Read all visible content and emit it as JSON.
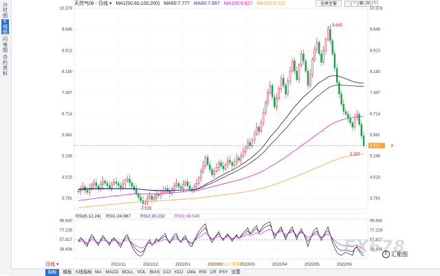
{
  "sidebar": {
    "tabs": [
      {
        "label": "分时图",
        "active": false
      },
      {
        "label": "K线图",
        "active": true
      },
      {
        "label": "闪电图",
        "active": false
      },
      {
        "label": "合约资料",
        "active": false
      }
    ]
  },
  "header": {
    "symbol": "天然气08 - 日线 ▾",
    "ma_title": "MA1(50,60,100,200)",
    "ma50": "MA50:7.777",
    "ma60": "MA60:7.667",
    "ma100": "MA100:6.627",
    "ma200": "MA200:5.316"
  },
  "toolbar": {
    "screen_button": "全屏主窗",
    "icons": [
      "minus-icon",
      "plus-icon",
      "grid-icon",
      "chart-icon",
      "refresh-icon"
    ]
  },
  "colors": {
    "up": "#c8102e",
    "down": "#1e9c4a",
    "ma50": "#222222",
    "ma60": "#2d2d7a",
    "ma100": "#e020c8",
    "ma200": "#f4a340",
    "rsi1": "#222222",
    "rsi2": "#2d2d7a",
    "rsi3": "#e020c8",
    "accent": "#2f6fc4"
  },
  "chart_data": {
    "type": "candlestick",
    "y_ticks": [
      "10.379",
      "9.646",
      "8.913",
      "8.180",
      "7.447",
      "6.714",
      "5.981",
      "5.248",
      "4.515",
      "3.781"
    ],
    "ylim": [
      3.4,
      10.379
    ],
    "x_ticks": [
      "2021/11",
      "2021/12",
      "2022/01",
      "2022/02",
      "2022/03",
      "2022/04",
      "2022/05",
      "2022/06"
    ],
    "crosshair_date": "2022/02/17 星期四",
    "annotations": {
      "high": "9.645",
      "low": "3.526",
      "recent_low": "5.357"
    },
    "last_price": "5.611",
    "candles_close": [
      4.02,
      4.1,
      4.18,
      4.05,
      3.98,
      4.12,
      4.25,
      4.32,
      4.2,
      4.1,
      4.26,
      4.38,
      4.3,
      4.22,
      4.14,
      4.28,
      4.35,
      4.3,
      4.22,
      4.15,
      4.28,
      4.4,
      4.45,
      4.32,
      4.2,
      4.08,
      3.94,
      3.82,
      3.7,
      3.6,
      3.66,
      3.78,
      3.86,
      3.74,
      3.8,
      3.92,
      3.88,
      3.96,
      4.05,
      4.12,
      4.02,
      3.95,
      4.1,
      4.22,
      4.3,
      4.18,
      4.12,
      4.26,
      4.35,
      4.22,
      4.1,
      4.05,
      4.18,
      4.3,
      4.48,
      4.7,
      4.92,
      5.2,
      4.95,
      4.78,
      4.6,
      4.72,
      4.85,
      5.02,
      4.9,
      4.8,
      4.95,
      5.1,
      5.02,
      4.92,
      5.05,
      5.18,
      5.1,
      5.25,
      5.4,
      5.55,
      5.72,
      5.6,
      5.8,
      6.02,
      6.25,
      6.1,
      6.4,
      6.75,
      7.1,
      7.45,
      7.7,
      7.3,
      6.95,
      7.25,
      7.6,
      7.95,
      7.7,
      7.4,
      7.85,
      8.2,
      8.55,
      8.2,
      7.9,
      8.4,
      8.8,
      8.55,
      8.2,
      7.7,
      8.1,
      8.6,
      8.95,
      9.2,
      8.8,
      8.5,
      8.9,
      9.3,
      9.65,
      9.25,
      8.8,
      8.3,
      7.8,
      7.4,
      7.05,
      6.8,
      6.7,
      6.55,
      6.4,
      6.25,
      6.6,
      6.7,
      6.35,
      5.95,
      5.61
    ],
    "ma50": [
      4.1,
      4.1,
      4.11,
      4.11,
      4.11,
      4.11,
      4.12,
      4.12,
      4.12,
      4.12,
      4.12,
      4.12,
      4.12,
      4.12,
      4.12,
      4.12,
      4.12,
      4.12,
      4.12,
      4.12,
      4.12,
      4.12,
      4.12,
      4.12,
      4.12,
      4.12,
      4.11,
      4.1,
      4.09,
      4.08,
      4.07,
      4.07,
      4.06,
      4.05,
      4.05,
      4.05,
      4.04,
      4.04,
      4.04,
      4.04,
      4.04,
      4.04,
      4.05,
      4.05,
      4.06,
      4.06,
      4.06,
      4.07,
      4.07,
      4.07,
      4.07,
      4.07,
      4.08,
      4.1,
      4.13,
      4.17,
      4.21,
      4.26,
      4.3,
      4.34,
      4.38,
      4.42,
      4.47,
      4.52,
      4.56,
      4.6,
      4.64,
      4.68,
      4.72,
      4.76,
      4.8,
      4.85,
      4.89,
      4.94,
      4.99,
      5.04,
      5.1,
      5.15,
      5.21,
      5.28,
      5.35,
      5.42,
      5.5,
      5.59,
      5.69,
      5.79,
      5.9,
      5.99,
      6.07,
      6.16,
      6.26,
      6.37,
      6.46,
      6.55,
      6.65,
      6.76,
      6.87,
      6.96,
      7.04,
      7.13,
      7.22,
      7.3,
      7.37,
      7.43,
      7.5,
      7.57,
      7.65,
      7.73,
      7.79,
      7.84,
      7.89,
      7.94,
      7.99,
      8.02,
      8.04,
      8.04,
      8.03,
      8.01,
      7.99,
      7.96,
      7.93,
      7.9,
      7.87,
      7.84,
      7.82,
      7.8,
      7.79,
      7.78,
      7.777
    ],
    "ma60": [
      4.08,
      4.08,
      4.09,
      4.09,
      4.09,
      4.1,
      4.1,
      4.1,
      4.1,
      4.1,
      4.1,
      4.1,
      4.11,
      4.11,
      4.11,
      4.11,
      4.11,
      4.11,
      4.11,
      4.11,
      4.11,
      4.11,
      4.11,
      4.11,
      4.11,
      4.11,
      4.1,
      4.1,
      4.09,
      4.08,
      4.08,
      4.07,
      4.07,
      4.06,
      4.06,
      4.06,
      4.05,
      4.05,
      4.05,
      4.05,
      4.05,
      4.05,
      4.05,
      4.06,
      4.06,
      4.06,
      4.06,
      4.07,
      4.07,
      4.07,
      4.07,
      4.07,
      4.08,
      4.09,
      4.11,
      4.14,
      4.17,
      4.21,
      4.25,
      4.28,
      4.31,
      4.35,
      4.39,
      4.43,
      4.47,
      4.5,
      4.54,
      4.58,
      4.62,
      4.65,
      4.69,
      4.73,
      4.77,
      4.81,
      4.86,
      4.9,
      4.95,
      5.0,
      5.05,
      5.11,
      5.17,
      5.23,
      5.3,
      5.37,
      5.45,
      5.54,
      5.63,
      5.71,
      5.78,
      5.86,
      5.95,
      6.04,
      6.12,
      6.2,
      6.29,
      6.38,
      6.48,
      6.56,
      6.64,
      6.72,
      6.81,
      6.89,
      6.96,
      7.02,
      7.09,
      7.16,
      7.24,
      7.31,
      7.37,
      7.43,
      7.49,
      7.55,
      7.61,
      7.65,
      7.68,
      7.7,
      7.71,
      7.71,
      7.71,
      7.7,
      7.7,
      7.69,
      7.69,
      7.68,
      7.68,
      7.67,
      7.67,
      7.67,
      7.667
    ],
    "ma100": [
      3.7,
      3.71,
      3.72,
      3.73,
      3.74,
      3.75,
      3.76,
      3.77,
      3.78,
      3.79,
      3.8,
      3.81,
      3.82,
      3.83,
      3.84,
      3.85,
      3.86,
      3.87,
      3.87,
      3.88,
      3.89,
      3.9,
      3.91,
      3.92,
      3.92,
      3.93,
      3.93,
      3.93,
      3.93,
      3.93,
      3.93,
      3.93,
      3.93,
      3.93,
      3.94,
      3.94,
      3.94,
      3.95,
      3.95,
      3.96,
      3.96,
      3.97,
      3.97,
      3.98,
      3.99,
      3.99,
      4.0,
      4.01,
      4.02,
      4.02,
      4.03,
      4.03,
      4.04,
      4.05,
      4.06,
      4.08,
      4.1,
      4.12,
      4.14,
      4.16,
      4.18,
      4.2,
      4.22,
      4.24,
      4.26,
      4.28,
      4.3,
      4.32,
      4.34,
      4.36,
      4.38,
      4.4,
      4.42,
      4.44,
      4.46,
      4.49,
      4.51,
      4.54,
      4.57,
      4.6,
      4.63,
      4.66,
      4.7,
      4.74,
      4.78,
      4.83,
      4.88,
      4.92,
      4.96,
      5.01,
      5.06,
      5.11,
      5.16,
      5.21,
      5.26,
      5.32,
      5.38,
      5.43,
      5.48,
      5.54,
      5.6,
      5.66,
      5.71,
      5.76,
      5.82,
      5.88,
      5.94,
      6.0,
      6.05,
      6.1,
      6.16,
      6.22,
      6.28,
      6.33,
      6.37,
      6.41,
      6.44,
      6.47,
      6.5,
      6.52,
      6.54,
      6.56,
      6.57,
      6.58,
      6.6,
      6.61,
      6.62,
      6.62,
      6.627
    ],
    "ma200": [
      3.45,
      3.46,
      3.47,
      3.48,
      3.48,
      3.49,
      3.5,
      3.51,
      3.51,
      3.52,
      3.53,
      3.54,
      3.54,
      3.55,
      3.56,
      3.57,
      3.57,
      3.58,
      3.59,
      3.6,
      3.6,
      3.61,
      3.62,
      3.63,
      3.63,
      3.64,
      3.64,
      3.65,
      3.65,
      3.66,
      3.66,
      3.67,
      3.67,
      3.68,
      3.68,
      3.69,
      3.69,
      3.7,
      3.7,
      3.71,
      3.71,
      3.72,
      3.72,
      3.73,
      3.73,
      3.74,
      3.74,
      3.75,
      3.75,
      3.76,
      3.76,
      3.77,
      3.77,
      3.78,
      3.79,
      3.8,
      3.81,
      3.82,
      3.83,
      3.84,
      3.85,
      3.86,
      3.87,
      3.88,
      3.89,
      3.9,
      3.91,
      3.92,
      3.93,
      3.94,
      3.95,
      3.96,
      3.97,
      3.98,
      3.99,
      4.0,
      4.02,
      4.03,
      4.05,
      4.06,
      4.08,
      4.1,
      4.12,
      4.14,
      4.16,
      4.18,
      4.21,
      4.23,
      4.26,
      4.28,
      4.31,
      4.34,
      4.37,
      4.4,
      4.43,
      4.46,
      4.49,
      4.52,
      4.55,
      4.58,
      4.62,
      4.65,
      4.68,
      4.71,
      4.74,
      4.78,
      4.81,
      4.84,
      4.88,
      4.91,
      4.94,
      4.97,
      5.01,
      5.04,
      5.07,
      5.1,
      5.13,
      5.15,
      5.18,
      5.2,
      5.22,
      5.24,
      5.25,
      5.27,
      5.28,
      5.29,
      5.3,
      5.31,
      5.316
    ]
  },
  "rsi": {
    "title": "RSI(6,12,24)",
    "rsi1": "RSI1:24.987",
    "rsi2": "RSI2:30.232",
    "rsi3": "RSI3:38.548",
    "y_ticks": [
      "96.640",
      "77.229",
      "57.817",
      "38.406"
    ],
    "ylim": [
      19,
      100
    ],
    "rsi1_values": [
      55,
      62,
      58,
      48,
      44,
      60,
      68,
      62,
      52,
      46,
      58,
      66,
      60,
      52,
      46,
      58,
      62,
      56,
      48,
      42,
      55,
      64,
      68,
      55,
      44,
      36,
      30,
      26,
      24,
      28,
      40,
      52,
      58,
      46,
      52,
      60,
      56,
      62,
      66,
      70,
      58,
      50,
      60,
      68,
      70,
      58,
      52,
      62,
      66,
      54,
      46,
      44,
      56,
      66,
      74,
      80,
      86,
      90,
      72,
      60,
      52,
      60,
      68,
      74,
      62,
      56,
      64,
      70,
      62,
      54,
      62,
      68,
      60,
      66,
      72,
      76,
      82,
      70,
      76,
      82,
      86,
      72,
      80,
      86,
      90,
      92,
      94,
      76,
      60,
      70,
      78,
      84,
      70,
      58,
      70,
      78,
      84,
      70,
      58,
      72,
      80,
      70,
      58,
      44,
      58,
      70,
      78,
      82,
      66,
      56,
      66,
      76,
      84,
      68,
      52,
      40,
      32,
      28,
      26,
      30,
      32,
      30,
      28,
      26,
      40,
      44,
      34,
      28,
      24.987
    ],
    "rsi2_values": [
      54,
      58,
      57,
      52,
      48,
      56,
      63,
      60,
      54,
      50,
      56,
      62,
      59,
      54,
      50,
      56,
      59,
      56,
      51,
      47,
      53,
      60,
      63,
      56,
      49,
      43,
      38,
      34,
      32,
      34,
      41,
      49,
      53,
      47,
      50,
      56,
      55,
      59,
      62,
      65,
      58,
      53,
      58,
      63,
      65,
      58,
      54,
      59,
      62,
      56,
      51,
      49,
      55,
      62,
      68,
      73,
      78,
      82,
      71,
      63,
      57,
      61,
      66,
      70,
      63,
      59,
      63,
      67,
      63,
      58,
      62,
      66,
      61,
      64,
      68,
      71,
      76,
      69,
      72,
      77,
      80,
      72,
      76,
      80,
      84,
      86,
      88,
      77,
      66,
      70,
      75,
      79,
      71,
      63,
      69,
      74,
      78,
      71,
      63,
      70,
      75,
      70,
      63,
      54,
      60,
      67,
      72,
      75,
      67,
      61,
      65,
      71,
      76,
      68,
      58,
      49,
      42,
      38,
      35,
      36,
      37,
      36,
      34,
      33,
      40,
      42,
      37,
      33,
      30.232
    ],
    "rsi3_values": [
      53,
      55,
      55,
      53,
      51,
      54,
      58,
      57,
      54,
      52,
      54,
      57,
      56,
      54,
      52,
      54,
      56,
      55,
      53,
      51,
      53,
      56,
      58,
      55,
      52,
      48,
      45,
      43,
      41,
      42,
      45,
      49,
      51,
      48,
      50,
      53,
      53,
      55,
      57,
      59,
      56,
      54,
      56,
      59,
      60,
      57,
      55,
      57,
      59,
      56,
      53,
      52,
      55,
      59,
      62,
      65,
      69,
      72,
      67,
      63,
      60,
      61,
      63,
      65,
      62,
      60,
      62,
      64,
      62,
      60,
      61,
      63,
      61,
      62,
      64,
      66,
      69,
      66,
      67,
      70,
      72,
      69,
      70,
      73,
      75,
      77,
      79,
      75,
      70,
      71,
      73,
      75,
      72,
      68,
      70,
      72,
      74,
      71,
      67,
      70,
      72,
      70,
      67,
      62,
      64,
      66,
      68,
      70,
      66,
      63,
      64,
      67,
      69,
      66,
      61,
      56,
      52,
      49,
      47,
      46,
      46,
      45,
      44,
      43,
      46,
      47,
      44,
      41,
      38.548
    ]
  },
  "crosshair": {
    "rsi_value": "57.817"
  },
  "day_selector": "日线",
  "bottom_tabs": [
    {
      "label": "指标",
      "active": true
    },
    {
      "label": "模板",
      "active": false
    },
    {
      "label": "K线指标",
      "active": false
    },
    {
      "label": "MA",
      "active": false
    },
    {
      "label": "MACD",
      "active": false
    },
    {
      "label": "BOLL",
      "active": false
    },
    {
      "label": "VOL",
      "active": false
    },
    {
      "label": "BIAS",
      "active": false
    },
    {
      "label": "CCI",
      "active": false
    },
    {
      "label": "KDJ",
      "active": false
    },
    {
      "label": "LWa",
      "active": false
    },
    {
      "label": "RSI",
      "active": false
    },
    {
      "label": "CR",
      "active": false
    },
    {
      "label": "PSY",
      "active": false
    },
    {
      "label": "设置",
      "active": false
    }
  ],
  "watermark": {
    "text": "FX678",
    "brand": "汇能图",
    "brand_icon": "E"
  }
}
